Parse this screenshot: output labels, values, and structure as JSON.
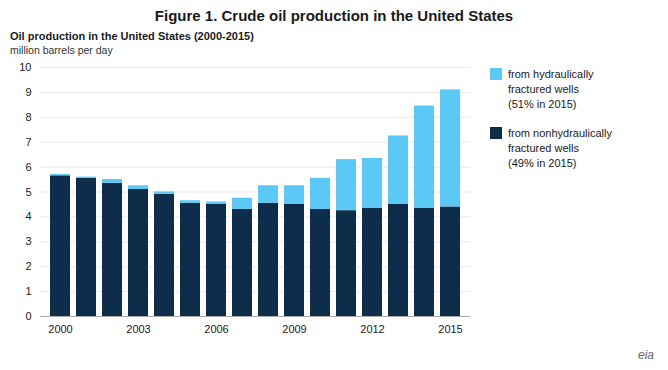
{
  "chart_data": {
    "type": "bar",
    "title": "Figure 1. Crude oil production in the United States",
    "subtitle": "Oil production in the United States (2000-2015)",
    "ylabel": "million barrels per day",
    "categories": [
      "2000",
      null,
      null,
      "2003",
      null,
      null,
      "2006",
      null,
      null,
      "2009",
      null,
      null,
      "2012",
      null,
      null,
      "2015"
    ],
    "series": [
      {
        "name": "from nonhydraulically\nfractured wells\n(49% in 2015)",
        "color": "#0d2d4a",
        "values": [
          5.65,
          5.55,
          5.35,
          5.1,
          4.9,
          4.55,
          4.5,
          4.3,
          4.55,
          4.5,
          4.3,
          4.25,
          4.35,
          4.5,
          4.35,
          4.4
        ]
      },
      {
        "name": "from hydraulically\nfractured wells\n(51% in 2015)",
        "color": "#5bc8f5",
        "values": [
          0.05,
          0.05,
          0.15,
          0.15,
          0.1,
          0.1,
          0.1,
          0.45,
          0.7,
          0.75,
          1.25,
          2.05,
          2.0,
          2.75,
          4.1,
          4.7
        ]
      }
    ],
    "stacked": true,
    "ylim": [
      0,
      10
    ],
    "yticks": [
      0,
      1,
      2,
      3,
      4,
      5,
      6,
      7,
      8,
      9,
      10
    ],
    "grid": true,
    "legend": "right",
    "annotations": [
      "eia"
    ]
  }
}
